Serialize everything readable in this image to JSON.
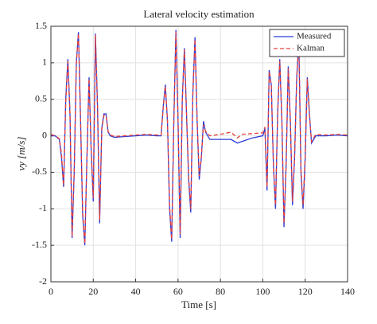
{
  "chart_data": {
    "type": "line",
    "title": "Lateral velocity estimation",
    "xlabel": "Time [s]",
    "ylabel": "vy [m/s]",
    "x": [
      0,
      2,
      4,
      5,
      6,
      7,
      8,
      9,
      10,
      11,
      12,
      13,
      14,
      15,
      16,
      17,
      18,
      19,
      20,
      21,
      22,
      23,
      24,
      25,
      26,
      27,
      28,
      30,
      35,
      40,
      45,
      50,
      52,
      53,
      54,
      55,
      56,
      57,
      58,
      59,
      60,
      61,
      62,
      63,
      64,
      65,
      66,
      67,
      68,
      69,
      70,
      71,
      72,
      73,
      75,
      80,
      85,
      88,
      90,
      95,
      100,
      101,
      102,
      103,
      104,
      105,
      106,
      107,
      108,
      109,
      110,
      111,
      112,
      113,
      114,
      115,
      116,
      117,
      118,
      119,
      120,
      121,
      122,
      123,
      125,
      130,
      135,
      140
    ],
    "series": [
      {
        "name": "Measured",
        "color": "#2b3bd6",
        "dashed": false,
        "values": [
          0,
          0,
          -0.05,
          -0.3,
          -0.7,
          0.5,
          1.05,
          0.3,
          -1.4,
          -0.5,
          1.0,
          1.42,
          0.2,
          -1.1,
          -1.5,
          -0.3,
          0.8,
          -0.2,
          -0.9,
          1.4,
          0.4,
          -1.2,
          0.1,
          0.3,
          0.3,
          0.05,
          0.0,
          -0.02,
          -0.01,
          0,
          0.01,
          0,
          0,
          0.4,
          0.7,
          0.2,
          -1.0,
          -1.45,
          0.2,
          1.45,
          0.2,
          -1.4,
          0.5,
          1.2,
          0.3,
          -0.6,
          -1.05,
          0.6,
          1.35,
          0.2,
          -0.6,
          -0.3,
          0.2,
          0.05,
          -0.05,
          -0.05,
          -0.05,
          -0.1,
          -0.08,
          -0.03,
          0,
          0.1,
          -0.75,
          0.9,
          0.7,
          -0.4,
          -1.0,
          0.3,
          1.05,
          0.2,
          -1.25,
          -0.4,
          0.95,
          0.2,
          -0.95,
          -0.3,
          0.8,
          1.3,
          -0.5,
          -1.0,
          -0.3,
          0.8,
          0.3,
          -0.1,
          0,
          0,
          0.01,
          0
        ]
      },
      {
        "name": "Kalman",
        "color": "#e8403a",
        "dashed": true,
        "values": [
          0.02,
          0,
          -0.04,
          -0.25,
          -0.68,
          0.45,
          1.02,
          0.32,
          -1.38,
          -0.48,
          0.98,
          1.4,
          0.22,
          -1.05,
          -1.48,
          -0.32,
          0.78,
          -0.18,
          -0.85,
          1.38,
          0.42,
          -1.15,
          0.08,
          0.28,
          0.28,
          0.06,
          0.01,
          -0.01,
          0,
          0.01,
          0.02,
          0.01,
          0.01,
          0.38,
          0.68,
          0.22,
          -0.95,
          -1.42,
          0.18,
          1.42,
          0.22,
          -1.35,
          0.48,
          1.18,
          0.32,
          -0.55,
          -1.0,
          0.58,
          1.32,
          0.22,
          -0.55,
          -0.28,
          0.15,
          0.06,
          0.0,
          0.02,
          0.05,
          -0.03,
          0.02,
          0.03,
          0.04,
          0.12,
          -0.7,
          0.88,
          0.68,
          -0.38,
          -0.95,
          0.28,
          1.02,
          0.22,
          -1.2,
          -0.38,
          0.92,
          0.22,
          -0.9,
          -0.28,
          0.78,
          1.28,
          -0.45,
          -0.95,
          -0.28,
          0.78,
          0.28,
          -0.08,
          0.02,
          0.01,
          0.02,
          0.01
        ]
      }
    ],
    "xlim": [
      0,
      140
    ],
    "xticks": [
      0,
      20,
      40,
      60,
      80,
      100,
      120,
      140
    ],
    "ylim": [
      -2,
      1.5
    ],
    "yticks": [
      -2,
      -1.5,
      -1,
      -0.5,
      0,
      0.5,
      1,
      1.5
    ],
    "grid": true,
    "legend": "upper right"
  }
}
